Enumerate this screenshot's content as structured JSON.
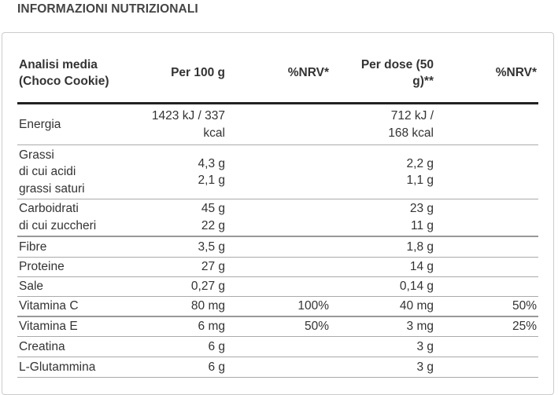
{
  "title": "INFORMAZIONI NUTRIZIONALI",
  "table": {
    "headers": [
      "Analisi media (Choco Cookie)",
      "Per 100 g",
      "%NRV*",
      "Per dose (50 g)**",
      "%NRV*"
    ],
    "rows": [
      {
        "name": "Energia",
        "per100": "1423 kJ / 337 kcal",
        "nrv100": "",
        "perdose": "712 kJ / 168 kcal",
        "nrvdose": ""
      },
      {
        "name": "Grassi",
        "sub": "di cui acidi grassi saturi",
        "per100": "4,3 g",
        "per100_sub": "2,1 g",
        "nrv100": "",
        "perdose": "2,2 g",
        "perdose_sub": "1,1 g",
        "nrvdose": ""
      },
      {
        "name": "Carboidrati",
        "sub": "di cui zuccheri",
        "per100": "45 g",
        "per100_sub": "22 g",
        "nrv100": "",
        "perdose": "23 g",
        "perdose_sub": "11 g",
        "nrvdose": ""
      },
      {
        "name": "Fibre",
        "per100": "3,5 g",
        "nrv100": "",
        "perdose": "1,8 g",
        "nrvdose": ""
      },
      {
        "name": "Proteine",
        "per100": "27 g",
        "nrv100": "",
        "perdose": "14 g",
        "nrvdose": ""
      },
      {
        "name": "Sale",
        "per100": "0,27 g",
        "nrv100": "",
        "perdose": "0,14 g",
        "nrvdose": ""
      },
      {
        "name": "Vitamina C",
        "per100": "80 mg",
        "nrv100": "100%",
        "perdose": "40 mg",
        "nrvdose": "50%"
      },
      {
        "name": "Vitamina E",
        "per100": "6 mg",
        "nrv100": "50%",
        "perdose": "3 mg",
        "nrvdose": "25%"
      },
      {
        "name": "Creatina",
        "per100": "6 g",
        "nrv100": "",
        "perdose": "3 g",
        "nrvdose": ""
      },
      {
        "name": "L-Glutammina",
        "per100": "6 g",
        "nrv100": "",
        "perdose": "3 g",
        "nrvdose": ""
      }
    ]
  }
}
